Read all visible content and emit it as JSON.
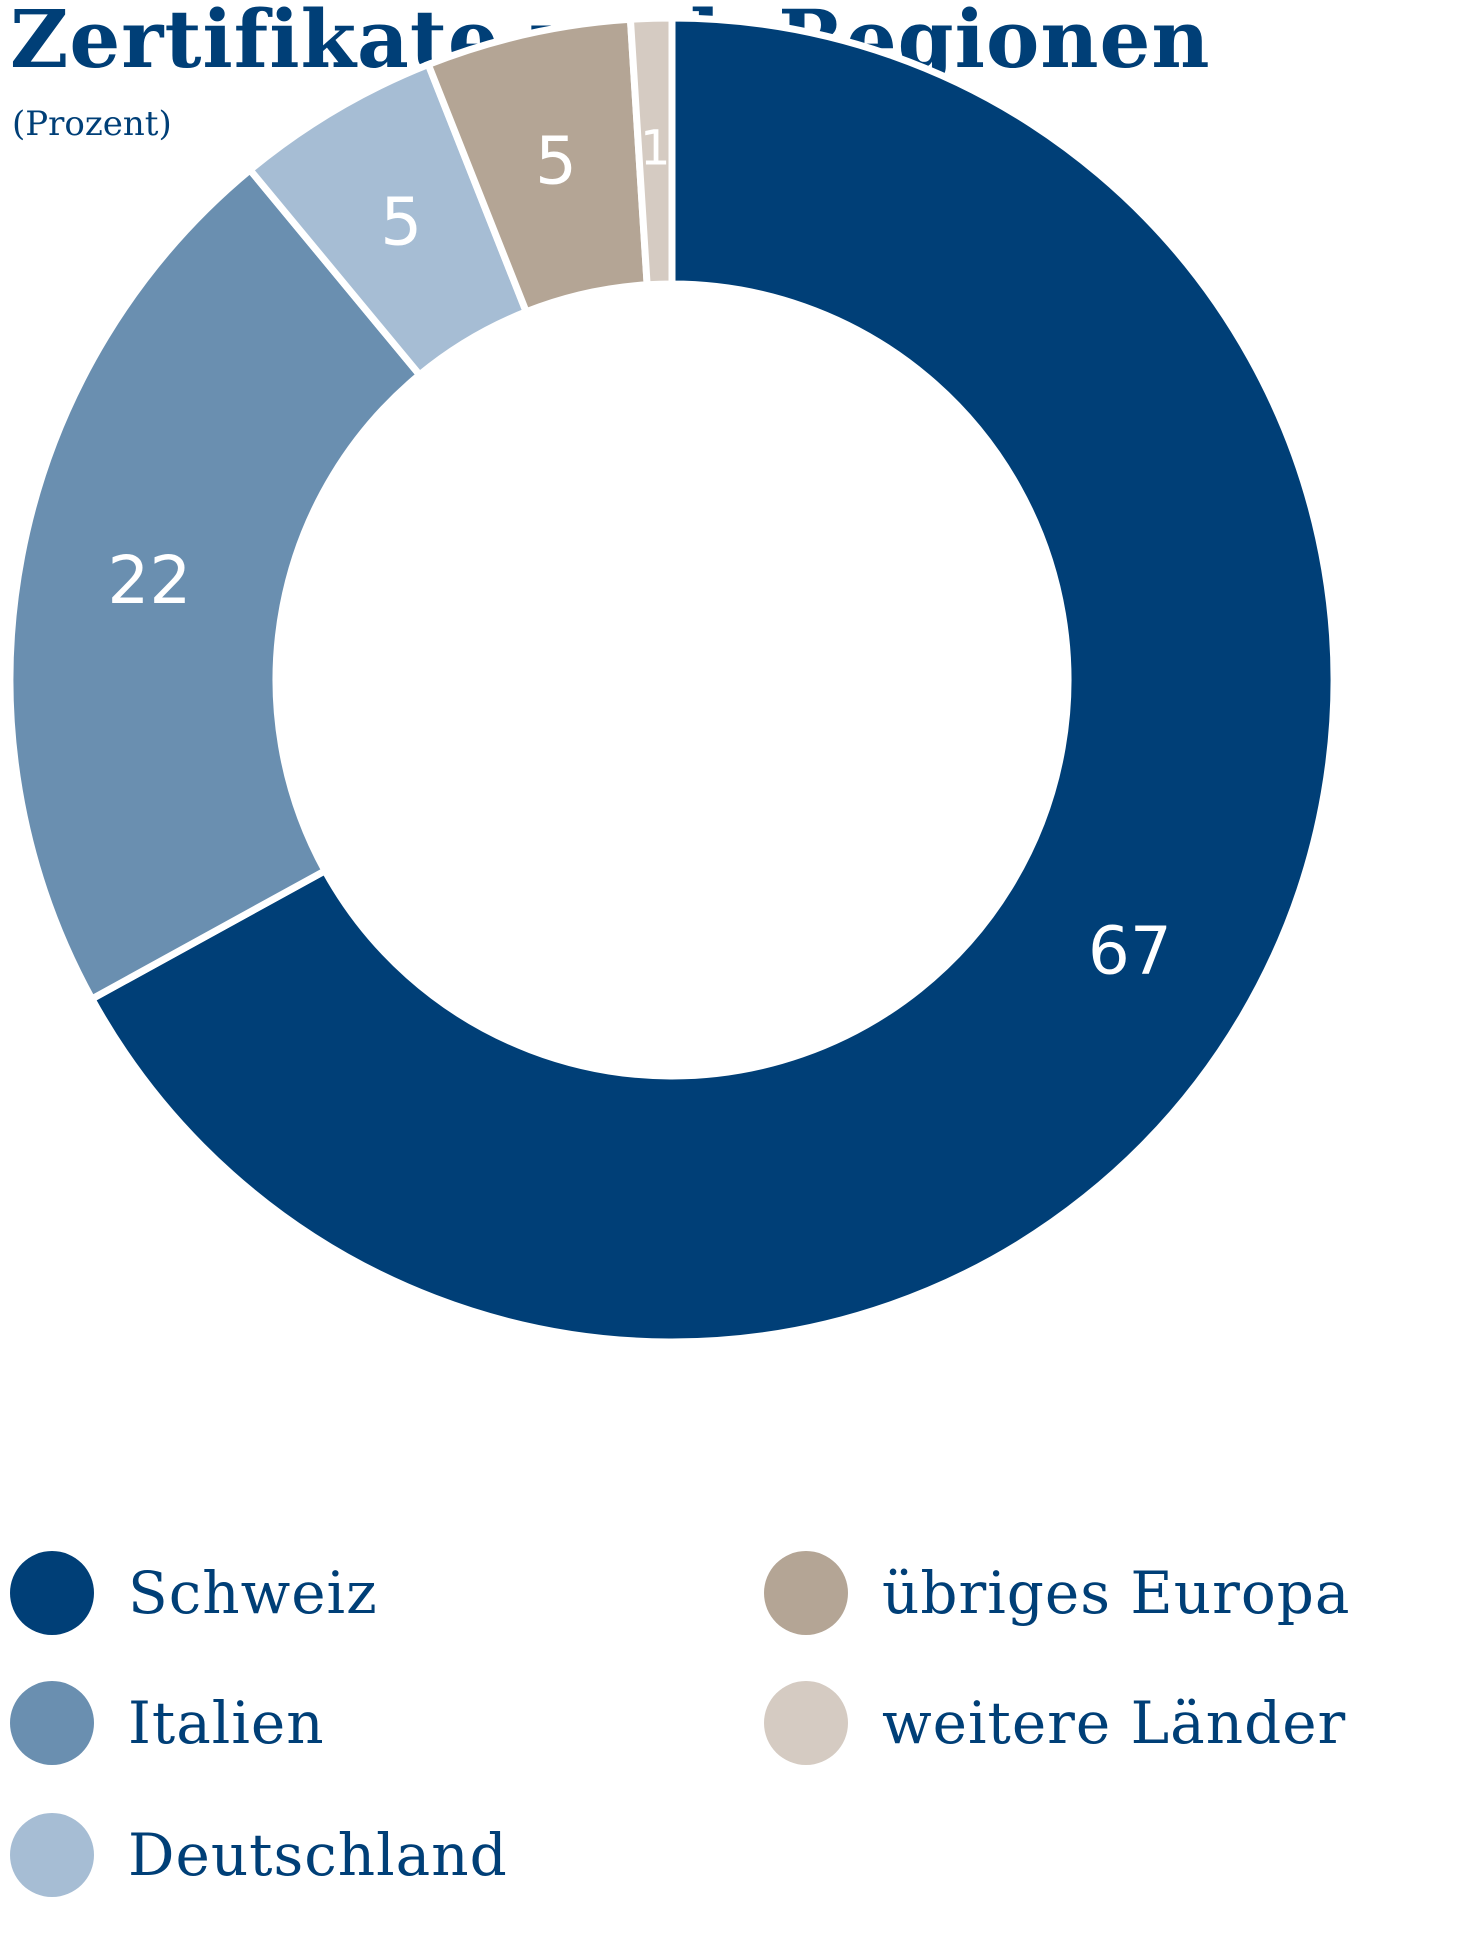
{
  "header": {
    "title": "Zertifikate nach Regionen",
    "subtitle": "(Prozent)"
  },
  "chart_data": {
    "type": "pie",
    "variant": "donut",
    "title": "Zertifikate nach Regionen",
    "subtitle": "(Prozent)",
    "unit": "Prozent",
    "slices": [
      {
        "name": "Schweiz",
        "value": 67,
        "label": "67",
        "color": "#003f77"
      },
      {
        "name": "Italien",
        "value": 22,
        "label": "22",
        "color": "#6a8fb0"
      },
      {
        "name": "Deutschland",
        "value": 5,
        "label": "5",
        "color": "#a6bdd4"
      },
      {
        "name": "übriges Europa",
        "value": 5,
        "label": "5",
        "color": "#b4a595"
      },
      {
        "name": "weitere Länder",
        "value": 1,
        "label": "1",
        "color": "#d5cbc2"
      }
    ],
    "legend_position": "bottom",
    "start_angle": "12 o'clock",
    "direction": "clockwise"
  },
  "legend": {
    "items": [
      {
        "label": "Schweiz",
        "color": "#003f77"
      },
      {
        "label": "übriges Europa",
        "color": "#b4a595"
      },
      {
        "label": "Italien",
        "color": "#6a8fb0"
      },
      {
        "label": "weitere Länder",
        "color": "#d5cbc2"
      },
      {
        "label": "Deutschland",
        "color": "#a6bdd4"
      }
    ]
  }
}
